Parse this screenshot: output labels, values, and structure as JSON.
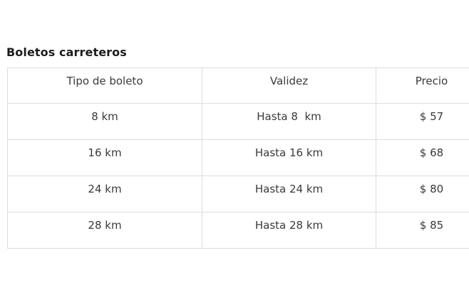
{
  "page": {
    "title": "Boletos carreteros",
    "background_color": "#ffffff",
    "title_color": "#1d1d1d"
  },
  "table": {
    "border_color": "#dddddd",
    "text_color": "#3a3a3a",
    "columns": [
      {
        "key": "tipo",
        "label": "Tipo de boleto"
      },
      {
        "key": "validez",
        "label": "Validez"
      },
      {
        "key": "precio",
        "label": "Precio"
      }
    ],
    "rows": [
      {
        "tipo": "8 km",
        "validez": "Hasta 8  km",
        "precio": "$ 57"
      },
      {
        "tipo": "16 km",
        "validez": "Hasta 16 km",
        "precio": "$ 68"
      },
      {
        "tipo": "24 km",
        "validez": "Hasta 24 km",
        "precio": "$ 80"
      },
      {
        "tipo": "28 km",
        "validez": "Hasta 28 km",
        "precio": "$ 85"
      }
    ]
  }
}
